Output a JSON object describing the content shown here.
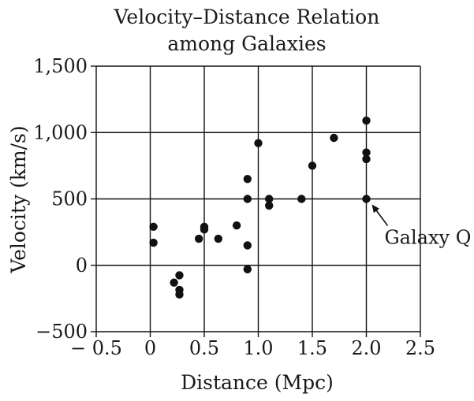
{
  "chart_data": {
    "type": "scatter",
    "title_lines": [
      "Velocity–Distance Relation",
      "among Galaxies"
    ],
    "xlabel": "Distance (Mpc)",
    "ylabel": "Velocity (km/s)",
    "xlim": [
      -0.5,
      2.5
    ],
    "ylim": [
      -500,
      1500
    ],
    "x_ticks": [
      -0.5,
      0,
      0.5,
      1.0,
      1.5,
      2.0,
      2.5
    ],
    "x_tick_labels": [
      "− 0.5",
      "0",
      "0.5",
      "1.0",
      "1.5",
      "2.0",
      "2.5"
    ],
    "y_ticks": [
      -500,
      0,
      500,
      1000,
      1500
    ],
    "y_tick_labels": [
      "−500",
      "0",
      "500",
      "1,000",
      "1,500"
    ],
    "grid": true,
    "point_color": "#111111",
    "points": [
      {
        "x": 0.03,
        "y": 290
      },
      {
        "x": 0.03,
        "y": 170
      },
      {
        "x": 0.22,
        "y": -130
      },
      {
        "x": 0.27,
        "y": -75
      },
      {
        "x": 0.27,
        "y": -185
      },
      {
        "x": 0.27,
        "y": -220
      },
      {
        "x": 0.45,
        "y": 200
      },
      {
        "x": 0.5,
        "y": 290
      },
      {
        "x": 0.5,
        "y": 270
      },
      {
        "x": 0.63,
        "y": 200
      },
      {
        "x": 0.8,
        "y": 300
      },
      {
        "x": 0.9,
        "y": 650
      },
      {
        "x": 0.9,
        "y": 500
      },
      {
        "x": 0.9,
        "y": 150
      },
      {
        "x": 0.9,
        "y": -30
      },
      {
        "x": 1.0,
        "y": 920
      },
      {
        "x": 1.1,
        "y": 500
      },
      {
        "x": 1.1,
        "y": 450
      },
      {
        "x": 1.4,
        "y": 500
      },
      {
        "x": 1.5,
        "y": 750
      },
      {
        "x": 1.7,
        "y": 960
      },
      {
        "x": 2.0,
        "y": 1090
      },
      {
        "x": 2.0,
        "y": 850
      },
      {
        "x": 2.0,
        "y": 800
      },
      {
        "x": 2.0,
        "y": 500
      }
    ],
    "annotation": {
      "label": "Galaxy Q",
      "x": 2.0,
      "y": 500
    }
  }
}
